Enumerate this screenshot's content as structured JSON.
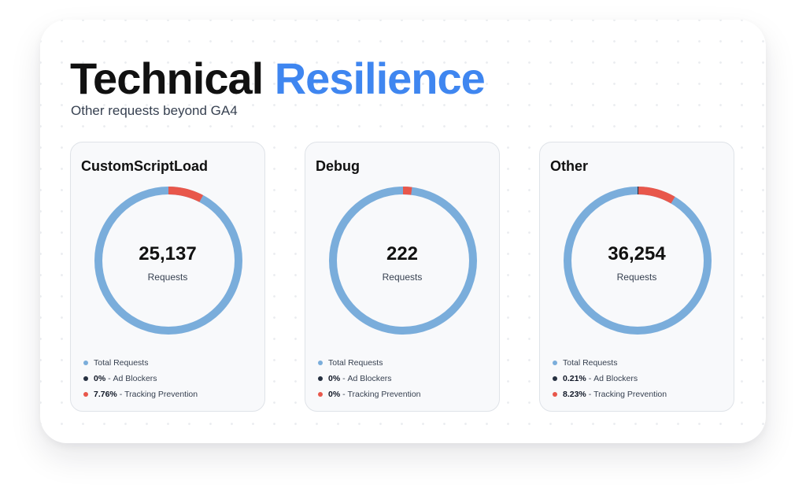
{
  "header": {
    "title_part1": "Technical",
    "title_part2": "Resilience",
    "subtitle": "Other requests beyond GA4"
  },
  "colors": {
    "total": "#7aaddb",
    "ad_blockers": "#253040",
    "tracking": "#e8574b",
    "accent": "#3f86f0"
  },
  "legend_labels": {
    "total": "Total Requests",
    "ad_blockers": "Ad Blockers",
    "tracking": "Tracking Prevention"
  },
  "center_label": "Requests",
  "chart_data": [
    {
      "type": "donut",
      "title": "CustomScriptLoad",
      "total": "25,137",
      "ad_blockers_pct": 0,
      "tracking_pct": 7.76,
      "ad_blockers_text": "0%",
      "tracking_text": "7.76%"
    },
    {
      "type": "donut",
      "title": "Debug",
      "total": "222",
      "ad_blockers_pct": 0,
      "tracking_pct": 0,
      "ad_blockers_text": "0%",
      "tracking_text": "0%"
    },
    {
      "type": "donut",
      "title": "Other",
      "total": "36,254",
      "ad_blockers_pct": 0.21,
      "tracking_pct": 8.23,
      "ad_blockers_text": "0.21%",
      "tracking_text": "8.23%"
    }
  ]
}
